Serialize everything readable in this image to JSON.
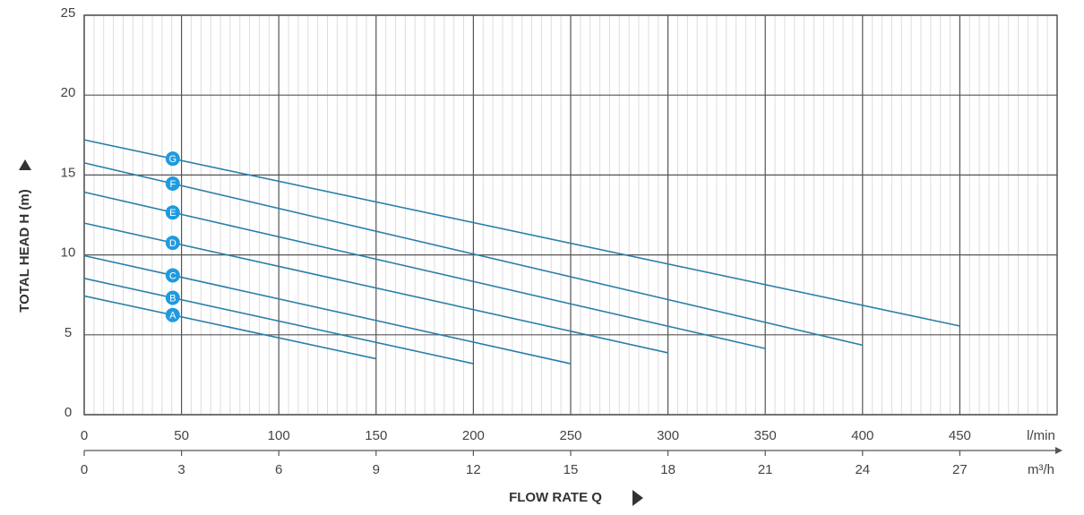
{
  "chart_data": {
    "type": "line",
    "xlabel": "FLOW RATE Q",
    "ylabel": "TOTAL HEAD H (m)",
    "x_unit": "l/min",
    "x2_unit": "m³/h",
    "xlim": [
      0,
      500
    ],
    "xticks": [
      0,
      50,
      100,
      150,
      200,
      250,
      300,
      350,
      400,
      450
    ],
    "x2lim": [
      0,
      30
    ],
    "x2ticks": [
      0,
      3,
      6,
      9,
      12,
      15,
      18,
      21,
      24,
      27
    ],
    "ylim": [
      0,
      25
    ],
    "yticks": [
      0,
      5,
      10,
      15,
      20,
      25
    ],
    "grid": true,
    "series": [
      {
        "name": "A",
        "color": "#2a7fa8",
        "x": [
          0,
          150
        ],
        "values": [
          7.43,
          3.5
        ]
      },
      {
        "name": "B",
        "color": "#2a7fa8",
        "x": [
          0,
          200
        ],
        "values": [
          8.53,
          3.19
        ]
      },
      {
        "name": "C",
        "color": "#2a7fa8",
        "x": [
          0,
          250
        ],
        "values": [
          9.95,
          3.19
        ]
      },
      {
        "name": "D",
        "color": "#2a7fa8",
        "x": [
          0,
          300
        ],
        "values": [
          11.99,
          3.87
        ]
      },
      {
        "name": "E",
        "color": "#2a7fa8",
        "x": [
          0,
          350
        ],
        "values": [
          13.93,
          4.14
        ]
      },
      {
        "name": "F",
        "color": "#2a7fa8",
        "x": [
          0,
          400
        ],
        "values": [
          15.76,
          4.35
        ]
      },
      {
        "name": "G",
        "color": "#2a7fa8",
        "x": [
          0,
          450
        ],
        "values": [
          17.2,
          5.55
        ]
      }
    ]
  }
}
